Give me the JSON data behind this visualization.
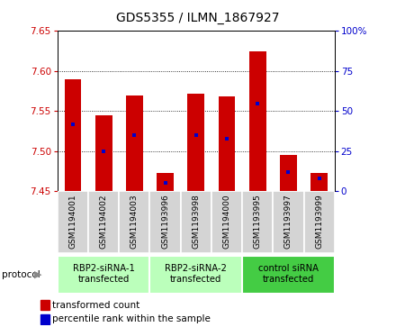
{
  "title": "GDS5355 / ILMN_1867927",
  "samples": [
    "GSM1194001",
    "GSM1194002",
    "GSM1194003",
    "GSM1193996",
    "GSM1193998",
    "GSM1194000",
    "GSM1193995",
    "GSM1193997",
    "GSM1193999"
  ],
  "transformed_count": [
    7.59,
    7.545,
    7.57,
    7.473,
    7.572,
    7.569,
    7.625,
    7.495,
    7.473
  ],
  "percentile_rank": [
    42,
    25,
    35,
    5,
    35,
    33,
    55,
    12,
    8
  ],
  "ylim_left": [
    7.45,
    7.65
  ],
  "ylim_right": [
    0,
    100
  ],
  "yticks_left": [
    7.45,
    7.5,
    7.55,
    7.6,
    7.65
  ],
  "yticks_right": [
    0,
    25,
    50,
    75,
    100
  ],
  "bar_color": "#cc0000",
  "percentile_color": "#0000cc",
  "legend_red_label": "transformed count",
  "legend_blue_label": "percentile rank within the sample",
  "protocol_label": "protocol",
  "group_ranges": [
    [
      0,
      2
    ],
    [
      3,
      5
    ],
    [
      6,
      8
    ]
  ],
  "group_labels": [
    "RBP2-siRNA-1\ntransfected",
    "RBP2-siRNA-2\ntransfected",
    "control siRNA\ntransfected"
  ],
  "group_colors": [
    "#bbffbb",
    "#bbffbb",
    "#44cc44"
  ],
  "sample_bg_color": "#d4d4d4",
  "title_fontsize": 10
}
